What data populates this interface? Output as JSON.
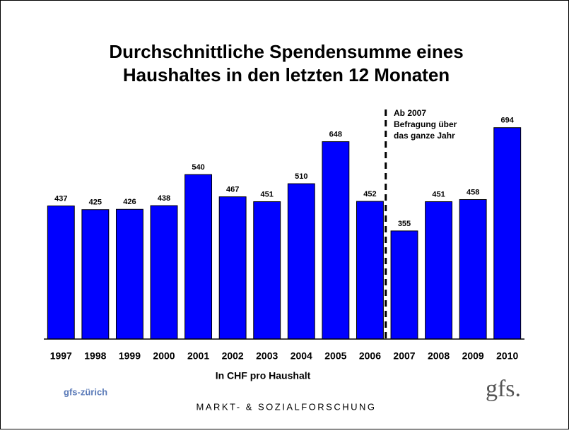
{
  "chart_data": {
    "type": "bar",
    "title": [
      "Durchschnittliche Spendensumme eines",
      "Haushaltes in den letzten 12 Monaten"
    ],
    "categories": [
      "1997",
      "1998",
      "1999",
      "2000",
      "2001",
      "2002",
      "2003",
      "2004",
      "2005",
      "2006",
      "2007",
      "2008",
      "2009",
      "2010"
    ],
    "values": [
      437,
      425,
      426,
      438,
      540,
      467,
      451,
      510,
      648,
      452,
      355,
      451,
      458,
      694
    ],
    "color": "#0000ff",
    "ylim": [
      0,
      800
    ],
    "x_label": "In CHF pro Haushalt",
    "annotation": [
      "Ab 2007",
      "Befragung über",
      "das ganze Jahr"
    ],
    "footer": {
      "left": "gfs-zürich",
      "center": "MARKT- & SOZIALFORSCHUNG",
      "logo": "gfs."
    }
  }
}
